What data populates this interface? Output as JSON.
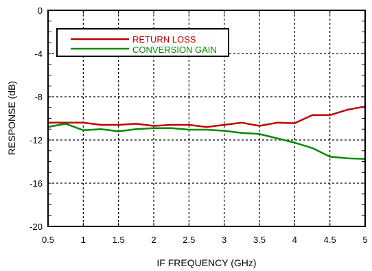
{
  "chart_data": {
    "type": "line",
    "xlabel": "IF FREQUENCY (GHz)",
    "ylabel": "RESPONSE (dB)",
    "xlim": [
      0.5,
      5
    ],
    "ylim": [
      -20,
      0
    ],
    "grid": true,
    "legend_position": "top-left",
    "x_ticks": [
      {
        "value": 0.5,
        "label": "0.5"
      },
      {
        "value": 1,
        "label": "1"
      },
      {
        "value": 1.5,
        "label": "1.5"
      },
      {
        "value": 2,
        "label": "2"
      },
      {
        "value": 2.5,
        "label": "2.5"
      },
      {
        "value": 3,
        "label": "3"
      },
      {
        "value": 3.5,
        "label": "3.5"
      },
      {
        "value": 4,
        "label": "4"
      },
      {
        "value": 4.5,
        "label": "4.5"
      },
      {
        "value": 5,
        "label": "5"
      }
    ],
    "y_ticks": [
      {
        "value": 0,
        "label": "0"
      },
      {
        "value": -4,
        "label": "-4"
      },
      {
        "value": -8,
        "label": "-8"
      },
      {
        "value": -12,
        "label": "-12"
      },
      {
        "value": -16,
        "label": "-16"
      },
      {
        "value": -20,
        "label": "-20"
      }
    ],
    "series": [
      {
        "name": "RETURN LOSS",
        "color": "#c00000",
        "x": [
          0.5,
          0.75,
          1.0,
          1.25,
          1.5,
          1.75,
          2.0,
          2.25,
          2.5,
          2.75,
          3.0,
          3.25,
          3.5,
          3.75,
          4.0,
          4.25,
          4.5,
          4.75,
          5.0
        ],
        "y": [
          -10.4,
          -10.4,
          -10.4,
          -10.6,
          -10.6,
          -10.5,
          -10.7,
          -10.6,
          -10.6,
          -10.8,
          -10.6,
          -10.4,
          -10.7,
          -10.4,
          -10.45,
          -9.7,
          -9.7,
          -9.2,
          -8.9
        ]
      },
      {
        "name": "CONVERSION GAIN",
        "color": "#008a00",
        "x": [
          0.5,
          0.75,
          1.0,
          1.25,
          1.5,
          1.75,
          2.0,
          2.25,
          2.5,
          2.75,
          3.0,
          3.25,
          3.5,
          3.75,
          4.0,
          4.25,
          4.5,
          4.75,
          5.0
        ],
        "y": [
          -10.8,
          -10.5,
          -11.1,
          -11.0,
          -11.2,
          -11.0,
          -10.9,
          -10.9,
          -11.05,
          -11.05,
          -11.15,
          -11.35,
          -11.45,
          -11.85,
          -12.25,
          -12.75,
          -13.55,
          -13.7,
          -13.75
        ]
      }
    ]
  }
}
